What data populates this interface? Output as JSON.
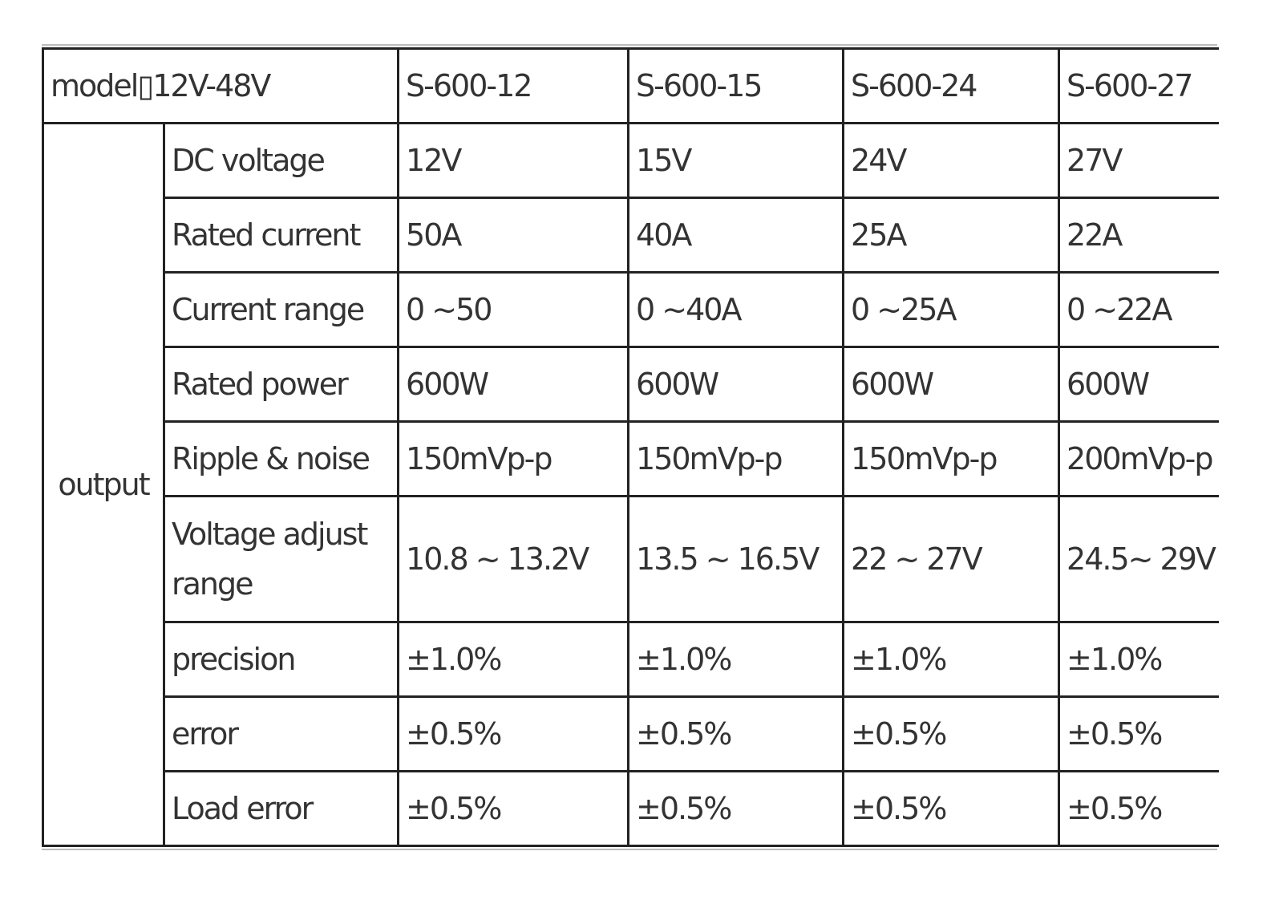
{
  "table": {
    "header": {
      "label": "model▯12V-48V",
      "models": [
        "S-600-12",
        "S-600-15",
        "S-600-24",
        "S-600-27"
      ]
    },
    "group": "output",
    "rows": [
      {
        "label": "DC voltage",
        "values": [
          "12V",
          "15V",
          "24V",
          "27V"
        ]
      },
      {
        "label": "Rated current",
        "values": [
          "50A",
          "40A",
          "25A",
          "22A"
        ]
      },
      {
        "label": "Current range",
        "values": [
          "0 ~50",
          "0 ~40A",
          "0 ~25A",
          "0 ~22A"
        ]
      },
      {
        "label": "Rated power",
        "values": [
          "600W",
          "600W",
          "600W",
          "600W"
        ]
      },
      {
        "label": "Ripple & noise",
        "values": [
          "150mVp-p",
          "150mVp-p",
          "150mVp-p",
          "200mVp-p"
        ]
      },
      {
        "label": "Voltage adjust range",
        "values": [
          "10.8 ~ 13.2V",
          "13.5 ~ 16.5V",
          "22 ~ 27V",
          "24.5~ 29V"
        ]
      },
      {
        "label": "precision",
        "values": [
          "±1.0%",
          "±1.0%",
          "±1.0%",
          "±1.0%"
        ]
      },
      {
        "label": "error",
        "values": [
          "±0.5%",
          "±0.5%",
          "±0.5%",
          "±0.5%"
        ]
      },
      {
        "label": "Load error",
        "values": [
          "±0.5%",
          "±0.5%",
          "±0.5%",
          "±0.5%"
        ]
      }
    ]
  }
}
